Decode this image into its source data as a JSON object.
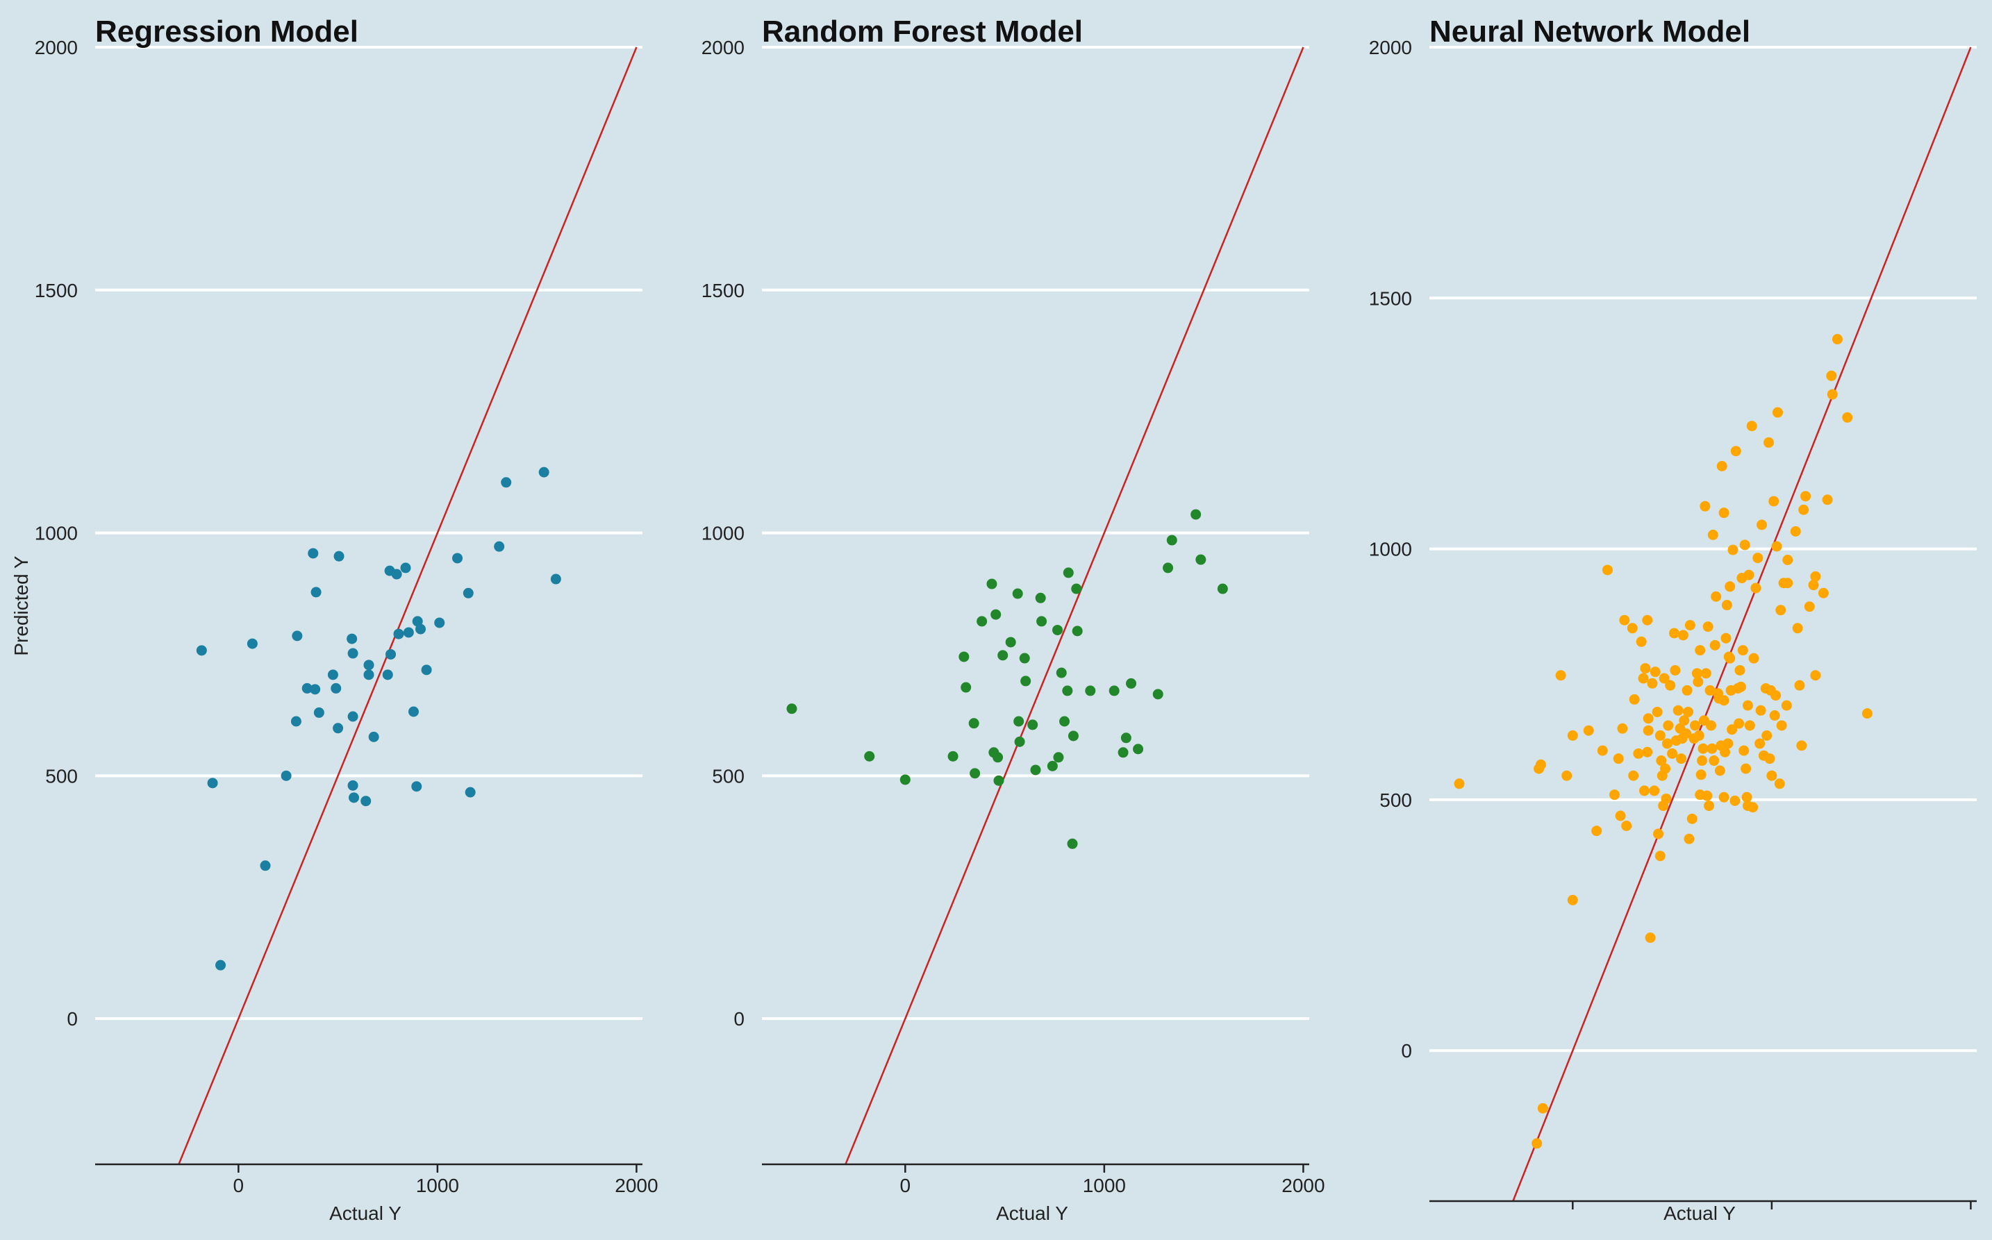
{
  "chart_data": [
    {
      "type": "scatter",
      "title": "Regression Model",
      "xlabel": "Actual Y",
      "ylabel": "Predicted Y",
      "xlim": [
        -720,
        2030
      ],
      "ylim": [
        -300,
        2000
      ],
      "xticks": [
        0,
        1000,
        2000
      ],
      "yticks": [
        0,
        500,
        1000,
        1500,
        2000
      ],
      "show_x_tick_labels": true,
      "grid": "horizontal",
      "reference_line": {
        "type": "identity",
        "color": "#cc2222"
      },
      "point_color": "#1a7fa0",
      "points": [
        [
          -185,
          758
        ],
        [
          70,
          772
        ],
        [
          -130,
          485
        ],
        [
          -90,
          110
        ],
        [
          135,
          315
        ],
        [
          240,
          500
        ],
        [
          290,
          612
        ],
        [
          295,
          788
        ],
        [
          345,
          680
        ],
        [
          375,
          958
        ],
        [
          385,
          678
        ],
        [
          390,
          878
        ],
        [
          405,
          630
        ],
        [
          475,
          708
        ],
        [
          490,
          680
        ],
        [
          500,
          598
        ],
        [
          505,
          952
        ],
        [
          570,
          782
        ],
        [
          575,
          752
        ],
        [
          575,
          622
        ],
        [
          575,
          480
        ],
        [
          580,
          455
        ],
        [
          640,
          448
        ],
        [
          655,
          728
        ],
        [
          655,
          708
        ],
        [
          680,
          580
        ],
        [
          750,
          708
        ],
        [
          760,
          922
        ],
        [
          765,
          750
        ],
        [
          795,
          915
        ],
        [
          805,
          792
        ],
        [
          840,
          928
        ],
        [
          855,
          795
        ],
        [
          880,
          632
        ],
        [
          895,
          478
        ],
        [
          900,
          818
        ],
        [
          915,
          802
        ],
        [
          945,
          718
        ],
        [
          1010,
          815
        ],
        [
          1100,
          948
        ],
        [
          1155,
          876
        ],
        [
          1165,
          466
        ],
        [
          1310,
          972
        ],
        [
          1345,
          1104
        ],
        [
          1535,
          1125
        ],
        [
          1595,
          905
        ]
      ]
    },
    {
      "type": "scatter",
      "title": "Random Forest Model",
      "xlabel": "Actual Y",
      "ylabel": "",
      "xlim": [
        -720,
        2030
      ],
      "ylim": [
        -300,
        2000
      ],
      "xticks": [
        0,
        1000,
        2000
      ],
      "yticks": [
        0,
        500,
        1000,
        1500,
        2000
      ],
      "show_x_tick_labels": true,
      "grid": "horizontal",
      "reference_line": {
        "type": "identity",
        "color": "#cc2222"
      },
      "point_color": "#22862a",
      "points": [
        [
          -570,
          638
        ],
        [
          -180,
          540
        ],
        [
          0,
          492
        ],
        [
          240,
          540
        ],
        [
          295,
          745
        ],
        [
          305,
          682
        ],
        [
          345,
          608
        ],
        [
          350,
          505
        ],
        [
          385,
          818
        ],
        [
          435,
          895
        ],
        [
          445,
          548
        ],
        [
          455,
          832
        ],
        [
          465,
          538
        ],
        [
          470,
          490
        ],
        [
          490,
          748
        ],
        [
          530,
          775
        ],
        [
          565,
          875
        ],
        [
          570,
          612
        ],
        [
          575,
          570
        ],
        [
          600,
          742
        ],
        [
          605,
          695
        ],
        [
          640,
          605
        ],
        [
          655,
          512
        ],
        [
          680,
          866
        ],
        [
          685,
          818
        ],
        [
          740,
          520
        ],
        [
          765,
          800
        ],
        [
          770,
          538
        ],
        [
          785,
          712
        ],
        [
          800,
          612
        ],
        [
          815,
          675
        ],
        [
          820,
          918
        ],
        [
          840,
          360
        ],
        [
          845,
          582
        ],
        [
          860,
          885
        ],
        [
          865,
          798
        ],
        [
          930,
          675
        ],
        [
          1050,
          675
        ],
        [
          1095,
          548
        ],
        [
          1110,
          578
        ],
        [
          1135,
          690
        ],
        [
          1170,
          555
        ],
        [
          1270,
          668
        ],
        [
          1320,
          928
        ],
        [
          1340,
          985
        ],
        [
          1460,
          1038
        ],
        [
          1485,
          945
        ],
        [
          1595,
          885
        ]
      ]
    },
    {
      "type": "scatter",
      "title": "Neural Network Model",
      "xlabel": "Actual Y",
      "ylabel": "",
      "xlim": [
        -720,
        2030
      ],
      "ylim": [
        -300,
        2000
      ],
      "xticks": [
        0,
        1000,
        2000
      ],
      "yticks": [
        0,
        500,
        1000,
        1500,
        2000
      ],
      "show_x_tick_labels": false,
      "grid": "horizontal",
      "reference_line": {
        "type": "identity",
        "color": "#cc2222"
      },
      "point_color": "#ffa500",
      "points": [
        [
          -570,
          532
        ],
        [
          -180,
          -185
        ],
        [
          -150,
          -115
        ],
        [
          -160,
          570
        ],
        [
          -170,
          562
        ],
        [
          -60,
          748
        ],
        [
          -30,
          548
        ],
        [
          0,
          300
        ],
        [
          0,
          628
        ],
        [
          80,
          638
        ],
        [
          120,
          438
        ],
        [
          150,
          598
        ],
        [
          175,
          958
        ],
        [
          210,
          510
        ],
        [
          230,
          582
        ],
        [
          240,
          468
        ],
        [
          250,
          642
        ],
        [
          260,
          858
        ],
        [
          270,
          448
        ],
        [
          300,
          842
        ],
        [
          305,
          548
        ],
        [
          310,
          700
        ],
        [
          330,
          592
        ],
        [
          345,
          815
        ],
        [
          355,
          742
        ],
        [
          360,
          518
        ],
        [
          365,
          762
        ],
        [
          375,
          858
        ],
        [
          375,
          595
        ],
        [
          380,
          662
        ],
        [
          380,
          638
        ],
        [
          390,
          225
        ],
        [
          400,
          732
        ],
        [
          410,
          518
        ],
        [
          415,
          755
        ],
        [
          425,
          675
        ],
        [
          430,
          432
        ],
        [
          440,
          628
        ],
        [
          440,
          388
        ],
        [
          445,
          578
        ],
        [
          450,
          548
        ],
        [
          455,
          488
        ],
        [
          460,
          742
        ],
        [
          465,
          562
        ],
        [
          470,
          502
        ],
        [
          475,
          612
        ],
        [
          480,
          648
        ],
        [
          490,
          728
        ],
        [
          500,
          592
        ],
        [
          510,
          832
        ],
        [
          515,
          758
        ],
        [
          520,
          618
        ],
        [
          530,
          678
        ],
        [
          540,
          642
        ],
        [
          545,
          582
        ],
        [
          550,
          622
        ],
        [
          555,
          828
        ],
        [
          560,
          658
        ],
        [
          570,
          632
        ],
        [
          575,
          718
        ],
        [
          580,
          675
        ],
        [
          585,
          422
        ],
        [
          590,
          848
        ],
        [
          600,
          462
        ],
        [
          610,
          622
        ],
        [
          615,
          648
        ],
        [
          625,
          752
        ],
        [
          630,
          735
        ],
        [
          635,
          628
        ],
        [
          640,
          798
        ],
        [
          640,
          510
        ],
        [
          645,
          550
        ],
        [
          650,
          578
        ],
        [
          655,
          602
        ],
        [
          660,
          658
        ],
        [
          665,
          1085
        ],
        [
          670,
          752
        ],
        [
          675,
          508
        ],
        [
          680,
          845
        ],
        [
          685,
          488
        ],
        [
          690,
          718
        ],
        [
          695,
          648
        ],
        [
          700,
          602
        ],
        [
          705,
          1028
        ],
        [
          710,
          578
        ],
        [
          715,
          808
        ],
        [
          720,
          905
        ],
        [
          730,
          712
        ],
        [
          735,
          702
        ],
        [
          740,
          558
        ],
        [
          745,
          608
        ],
        [
          750,
          1165
        ],
        [
          760,
          1072
        ],
        [
          760,
          698
        ],
        [
          760,
          505
        ],
        [
          765,
          595
        ],
        [
          770,
          822
        ],
        [
          775,
          888
        ],
        [
          780,
          612
        ],
        [
          785,
          785
        ],
        [
          790,
          925
        ],
        [
          790,
          782
        ],
        [
          795,
          718
        ],
        [
          800,
          640
        ],
        [
          805,
          998
        ],
        [
          815,
          498
        ],
        [
          820,
          1195
        ],
        [
          830,
          722
        ],
        [
          835,
          652
        ],
        [
          840,
          758
        ],
        [
          845,
          725
        ],
        [
          850,
          942
        ],
        [
          855,
          798
        ],
        [
          860,
          598
        ],
        [
          865,
          1008
        ],
        [
          870,
          562
        ],
        [
          875,
          505
        ],
        [
          880,
          688
        ],
        [
          880,
          488
        ],
        [
          885,
          948
        ],
        [
          890,
          648
        ],
        [
          900,
          1245
        ],
        [
          905,
          485
        ],
        [
          910,
          782
        ],
        [
          920,
          922
        ],
        [
          930,
          982
        ],
        [
          940,
          612
        ],
        [
          945,
          678
        ],
        [
          950,
          1048
        ],
        [
          960,
          588
        ],
        [
          970,
          722
        ],
        [
          975,
          628
        ],
        [
          985,
          1212
        ],
        [
          990,
          582
        ],
        [
          995,
          718
        ],
        [
          1000,
          548
        ],
        [
          1010,
          1095
        ],
        [
          1015,
          668
        ],
        [
          1020,
          708
        ],
        [
          1025,
          1005
        ],
        [
          1030,
          1272
        ],
        [
          1040,
          532
        ],
        [
          1045,
          878
        ],
        [
          1050,
          648
        ],
        [
          1060,
          932
        ],
        [
          1075,
          688
        ],
        [
          1080,
          932
        ],
        [
          1080,
          978
        ],
        [
          1120,
          1035
        ],
        [
          1130,
          842
        ],
        [
          1140,
          728
        ],
        [
          1150,
          608
        ],
        [
          1160,
          1078
        ],
        [
          1170,
          1105
        ],
        [
          1190,
          885
        ],
        [
          1220,
          748
        ],
        [
          1210,
          928
        ],
        [
          1220,
          945
        ],
        [
          1260,
          912
        ],
        [
          1280,
          1098
        ],
        [
          1300,
          1345
        ],
        [
          1305,
          1308
        ],
        [
          1330,
          1418
        ],
        [
          1380,
          1262
        ],
        [
          1480,
          672
        ]
      ]
    }
  ]
}
